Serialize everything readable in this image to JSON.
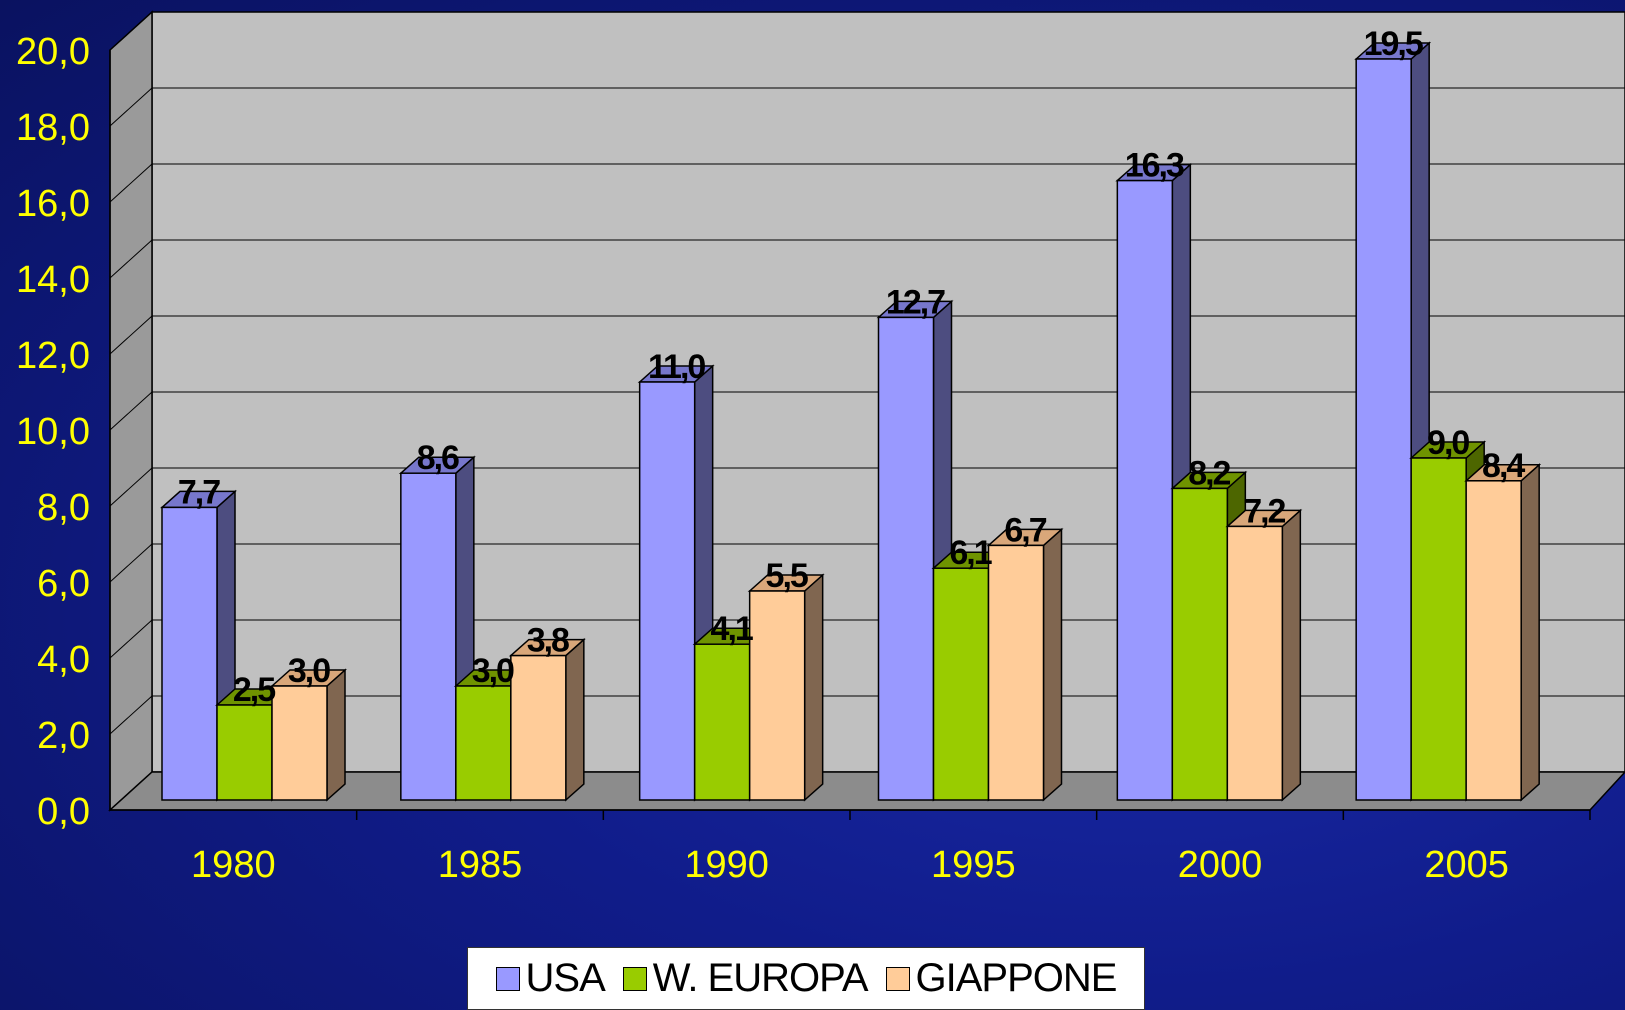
{
  "chart_data": {
    "type": "bar",
    "style": "3d-clustered",
    "categories": [
      "1980",
      "1985",
      "1990",
      "1995",
      "2000",
      "2005"
    ],
    "series": [
      {
        "name": "USA",
        "values": [
          7.7,
          8.6,
          11.0,
          12.7,
          16.3,
          19.5
        ],
        "labels": [
          "7,7",
          "8,6",
          "11,0",
          "12,7",
          "16,3",
          "19,5"
        ]
      },
      {
        "name": "W. EUROPA",
        "values": [
          2.5,
          3.0,
          4.1,
          6.1,
          8.2,
          9.0
        ],
        "labels": [
          "2,5",
          "3,0",
          "4,1",
          "6,1",
          "8,2",
          "9,0"
        ]
      },
      {
        "name": "GIAPPONE",
        "values": [
          3.0,
          3.8,
          5.5,
          6.7,
          7.2,
          8.4
        ],
        "labels": [
          "3,0",
          "3,8",
          "5,5",
          "6,7",
          "7,2",
          "8,4"
        ]
      }
    ],
    "yticks": [
      "0,0",
      "2,0",
      "4,0",
      "6,0",
      "8,0",
      "10,0",
      "12,0",
      "14,0",
      "16,0",
      "18,0",
      "20,0"
    ],
    "ylim": [
      0,
      20
    ],
    "grid": true,
    "legend_position": "bottom",
    "colors": {
      "USA": "#9999ff",
      "USA_side": "#4d4d80",
      "USA_top": "#7777cc",
      "W. EUROPA": "#99cc00",
      "W. EUROPA_side": "#4d6600",
      "W. EUROPA_top": "#6f9300",
      "GIAPPONE": "#ffcc99",
      "GIAPPONE_side": "#806650",
      "GIAPPONE_top": "#d9a77a",
      "plot_back": "#c0c0c0",
      "axis_text": "#ffff00"
    }
  }
}
